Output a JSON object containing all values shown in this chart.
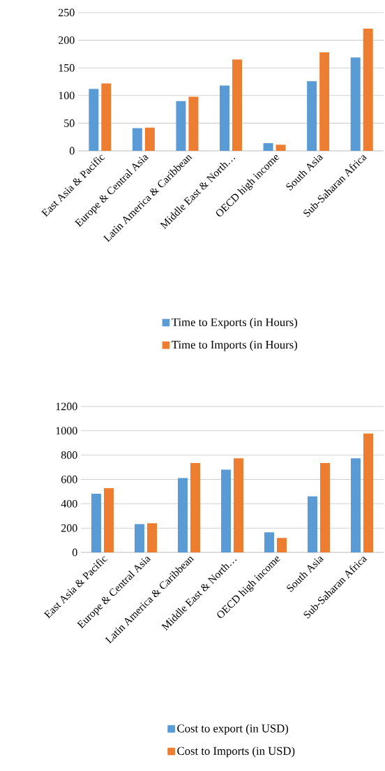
{
  "chart_data": [
    {
      "type": "bar",
      "categories": [
        "East Asia & Pacific",
        "Europe & Central Asia",
        "Latin America & Caribbean",
        "Middle East & North…",
        "OECD high income",
        "South Asia",
        "Sub-Saharan Africa"
      ],
      "series": [
        {
          "name": "Time to Exports (in Hours)",
          "color": "#5b9bd5",
          "values": [
            112,
            41,
            90,
            118,
            14,
            126,
            169
          ]
        },
        {
          "name": "Time to Imports (in Hours)",
          "color": "#ed7d31",
          "values": [
            122,
            42,
            98,
            165,
            11,
            178,
            221
          ]
        }
      ],
      "ylim": [
        0,
        250
      ],
      "yticks": [
        0,
        50,
        100,
        150,
        200,
        250
      ],
      "grid": "y",
      "legend": "bottom"
    },
    {
      "type": "bar",
      "categories": [
        "East Asia & Pacific",
        "Europe & Central Asia",
        "Latin America & Caribbean",
        "Middle East & North…",
        "OECD high income",
        "South Asia",
        "Sub-Saharan Africa"
      ],
      "series": [
        {
          "name": "Cost to export (in USD)",
          "color": "#5b9bd5",
          "values": [
            482,
            233,
            612,
            681,
            165,
            461,
            773
          ]
        },
        {
          "name": "Cost to Imports (in USD)",
          "color": "#ed7d31",
          "values": [
            528,
            239,
            735,
            773,
            119,
            735,
            978
          ]
        }
      ],
      "ylim": [
        0,
        1200
      ],
      "yticks": [
        0,
        200,
        400,
        600,
        800,
        1000,
        1200
      ],
      "grid": "y",
      "legend": "bottom"
    }
  ]
}
